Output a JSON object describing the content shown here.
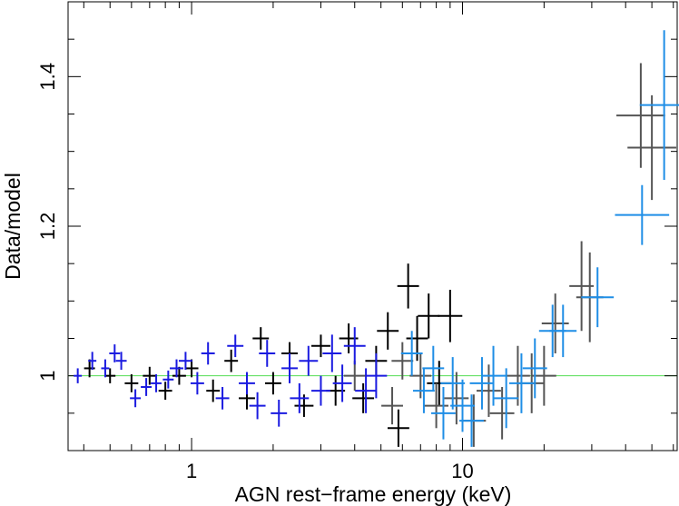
{
  "chart_data": {
    "type": "scatter",
    "xlabel": "AGN rest−frame energy (keV)",
    "ylabel": "Data/model",
    "xscale": "log",
    "xlim": [
      0.35,
      62
    ],
    "ylim": [
      0.9,
      1.5
    ],
    "x_ticks": [
      {
        "value": 1,
        "label": "1"
      },
      {
        "value": 10,
        "label": "10"
      }
    ],
    "y_ticks": [
      {
        "value": 1.0,
        "label": "1"
      },
      {
        "value": 1.2,
        "label": "1.2"
      },
      {
        "value": 1.4,
        "label": "1.4"
      }
    ],
    "reference_line": {
      "y": 1.0,
      "color": "#55dd55"
    },
    "grid": false,
    "series": [
      {
        "color": "#000000",
        "points": [
          [
            0.42,
            1.01,
            0.02,
            0.012
          ],
          [
            0.5,
            1.0,
            0.02,
            0.01
          ],
          [
            0.6,
            0.99,
            0.025,
            0.012
          ],
          [
            0.7,
            1.0,
            0.025,
            0.012
          ],
          [
            0.8,
            0.98,
            0.025,
            0.012
          ],
          [
            0.9,
            1.0,
            0.025,
            0.012
          ],
          [
            1.0,
            1.01,
            0.025,
            0.012
          ],
          [
            1.2,
            0.98,
            0.025,
            0.015
          ],
          [
            1.4,
            1.02,
            0.025,
            0.015
          ],
          [
            1.6,
            0.97,
            0.03,
            0.015
          ],
          [
            1.8,
            1.05,
            0.03,
            0.015
          ],
          [
            2.0,
            0.99,
            0.03,
            0.015
          ],
          [
            2.3,
            1.03,
            0.03,
            0.015
          ],
          [
            2.6,
            0.96,
            0.035,
            0.015
          ],
          [
            3.0,
            1.04,
            0.035,
            0.015
          ],
          [
            3.4,
            0.98,
            0.035,
            0.02
          ],
          [
            3.8,
            1.05,
            0.035,
            0.02
          ],
          [
            4.3,
            0.97,
            0.04,
            0.02
          ],
          [
            4.8,
            1.02,
            0.04,
            0.02
          ],
          [
            5.3,
            1.06,
            0.04,
            0.025
          ],
          [
            5.8,
            0.93,
            0.04,
            0.025
          ],
          [
            6.3,
            1.12,
            0.04,
            0.03
          ],
          [
            6.8,
            1.05,
            0.04,
            0.03
          ],
          [
            7.5,
            1.08,
            0.04,
            0.03
          ],
          [
            8.2,
            0.99,
            0.045,
            0.03
          ],
          [
            9.0,
            1.08,
            0.045,
            0.035
          ]
        ]
      },
      {
        "color": "#555555",
        "points": [
          [
            4.0,
            1.0,
            0.04,
            0.02
          ],
          [
            5.5,
            0.96,
            0.04,
            0.025
          ],
          [
            6.0,
            1.02,
            0.04,
            0.025
          ],
          [
            7.0,
            1.0,
            0.04,
            0.03
          ],
          [
            8.0,
            0.96,
            0.045,
            0.03
          ],
          [
            9.5,
            0.97,
            0.045,
            0.035
          ],
          [
            11.0,
            0.94,
            0.045,
            0.035
          ],
          [
            12.5,
            0.98,
            0.045,
            0.035
          ],
          [
            14.0,
            0.95,
            0.045,
            0.035
          ],
          [
            16.0,
            1.0,
            0.045,
            0.04
          ],
          [
            18.0,
            0.99,
            0.045,
            0.04
          ],
          [
            20.0,
            1.0,
            0.045,
            0.04
          ],
          [
            22.0,
            1.07,
            0.05,
            0.04
          ],
          [
            27.5,
            1.12,
            0.045,
            0.06
          ],
          [
            29.5,
            1.105,
            0.05,
            0.06
          ],
          [
            45.5,
            1.348,
            0.09,
            0.07
          ],
          [
            50.0,
            1.305,
            0.09,
            0.07
          ]
        ]
      },
      {
        "color": "#1a1ae0",
        "points": [
          [
            0.38,
            1.0,
            0.015,
            0.01
          ],
          [
            0.43,
            1.02,
            0.015,
            0.012
          ],
          [
            0.48,
            1.01,
            0.015,
            0.012
          ],
          [
            0.52,
            1.03,
            0.02,
            0.012
          ],
          [
            0.55,
            1.02,
            0.02,
            0.012
          ],
          [
            0.62,
            0.97,
            0.02,
            0.012
          ],
          [
            0.68,
            0.985,
            0.02,
            0.012
          ],
          [
            0.74,
            0.99,
            0.02,
            0.012
          ],
          [
            0.82,
            0.995,
            0.02,
            0.012
          ],
          [
            0.88,
            1.01,
            0.025,
            0.012
          ],
          [
            0.95,
            1.02,
            0.025,
            0.012
          ],
          [
            1.05,
            0.99,
            0.025,
            0.015
          ],
          [
            1.15,
            1.03,
            0.025,
            0.015
          ],
          [
            1.3,
            0.97,
            0.025,
            0.015
          ],
          [
            1.45,
            1.04,
            0.03,
            0.015
          ],
          [
            1.6,
            0.99,
            0.03,
            0.015
          ],
          [
            1.75,
            0.96,
            0.03,
            0.018
          ],
          [
            1.9,
            1.03,
            0.03,
            0.018
          ],
          [
            2.1,
            0.95,
            0.03,
            0.018
          ],
          [
            2.3,
            1.01,
            0.03,
            0.02
          ],
          [
            2.5,
            0.97,
            0.035,
            0.02
          ],
          [
            2.7,
            1.02,
            0.035,
            0.02
          ],
          [
            3.0,
            0.98,
            0.035,
            0.02
          ],
          [
            3.3,
            1.03,
            0.035,
            0.025
          ],
          [
            3.6,
            0.99,
            0.035,
            0.025
          ],
          [
            4.0,
            1.04,
            0.04,
            0.025
          ],
          [
            4.4,
            0.98,
            0.04,
            0.03
          ],
          [
            4.8,
            1.0,
            0.04,
            0.03
          ]
        ]
      },
      {
        "color": "#1f8ee6",
        "points": [
          [
            6.5,
            1.03,
            0.04,
            0.03
          ],
          [
            7.2,
            0.98,
            0.04,
            0.03
          ],
          [
            7.8,
            1.01,
            0.04,
            0.03
          ],
          [
            8.5,
            0.95,
            0.045,
            0.035
          ],
          [
            9.2,
            0.99,
            0.045,
            0.035
          ],
          [
            10.0,
            0.96,
            0.045,
            0.035
          ],
          [
            10.8,
            0.94,
            0.045,
            0.035
          ],
          [
            11.8,
            0.99,
            0.045,
            0.035
          ],
          [
            13.0,
            1.0,
            0.045,
            0.04
          ],
          [
            14.5,
            0.97,
            0.045,
            0.04
          ],
          [
            16.5,
            0.99,
            0.045,
            0.04
          ],
          [
            18.5,
            1.01,
            0.045,
            0.04
          ],
          [
            21.5,
            1.06,
            0.05,
            0.035
          ],
          [
            23.5,
            1.06,
            0.05,
            0.035
          ],
          [
            31.5,
            1.105,
            0.06,
            0.04
          ],
          [
            46.0,
            1.215,
            0.1,
            0.04
          ],
          [
            55.5,
            1.362,
            0.09,
            0.1
          ]
        ]
      }
    ]
  }
}
